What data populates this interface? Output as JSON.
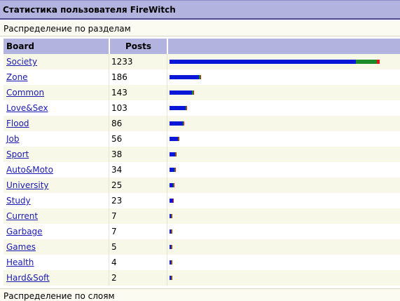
{
  "title": "Статистика пользователя FireWitch",
  "section1": "Распределение по разделам",
  "section2": "Распределение по слоям",
  "columns": {
    "board": "Board",
    "posts": "Posts"
  },
  "colors": {
    "blue": "#0a16d8",
    "green": "#1d8a2a",
    "red": "#e01818"
  },
  "rows": [
    {
      "board": "Society",
      "posts": "1233",
      "blue": 0.8854,
      "green": 0.1007,
      "red": 0.0139
    },
    {
      "board": "Zone",
      "posts": "186",
      "blue": 0.93,
      "green": 0.05,
      "red": 0.02
    },
    {
      "board": "Common",
      "posts": "143",
      "blue": 0.92,
      "green": 0.06,
      "red": 0.02
    },
    {
      "board": "Love&Sex",
      "posts": "103",
      "blue": 0.9,
      "green": 0.07,
      "red": 0.03
    },
    {
      "board": "Flood",
      "posts": "86",
      "blue": 0.9,
      "green": 0.07,
      "red": 0.03
    },
    {
      "board": "Job",
      "posts": "56",
      "blue": 0.88,
      "green": 0.08,
      "red": 0.04
    },
    {
      "board": "Sport",
      "posts": "38",
      "blue": 0.88,
      "green": 0.08,
      "red": 0.04
    },
    {
      "board": "Auto&Moto",
      "posts": "34",
      "blue": 0.88,
      "green": 0.08,
      "red": 0.04
    },
    {
      "board": "University",
      "posts": "25",
      "blue": 0.88,
      "green": 0.08,
      "red": 0.04
    },
    {
      "board": "Study",
      "posts": "23",
      "blue": 0.85,
      "green": 0.1,
      "red": 0.05
    },
    {
      "board": "Current",
      "posts": "7",
      "blue": 0.7,
      "green": 0.2,
      "red": 0.1
    },
    {
      "board": "Garbage",
      "posts": "7",
      "blue": 0.7,
      "green": 0.2,
      "red": 0.1
    },
    {
      "board": "Games",
      "posts": "5",
      "blue": 0.7,
      "green": 0.2,
      "red": 0.1
    },
    {
      "board": "Health",
      "posts": "4",
      "blue": 0.7,
      "green": 0.2,
      "red": 0.1
    },
    {
      "board": "Hard&Soft",
      "posts": "2",
      "blue": 0.7,
      "green": 0.2,
      "red": 0.1
    }
  ]
}
